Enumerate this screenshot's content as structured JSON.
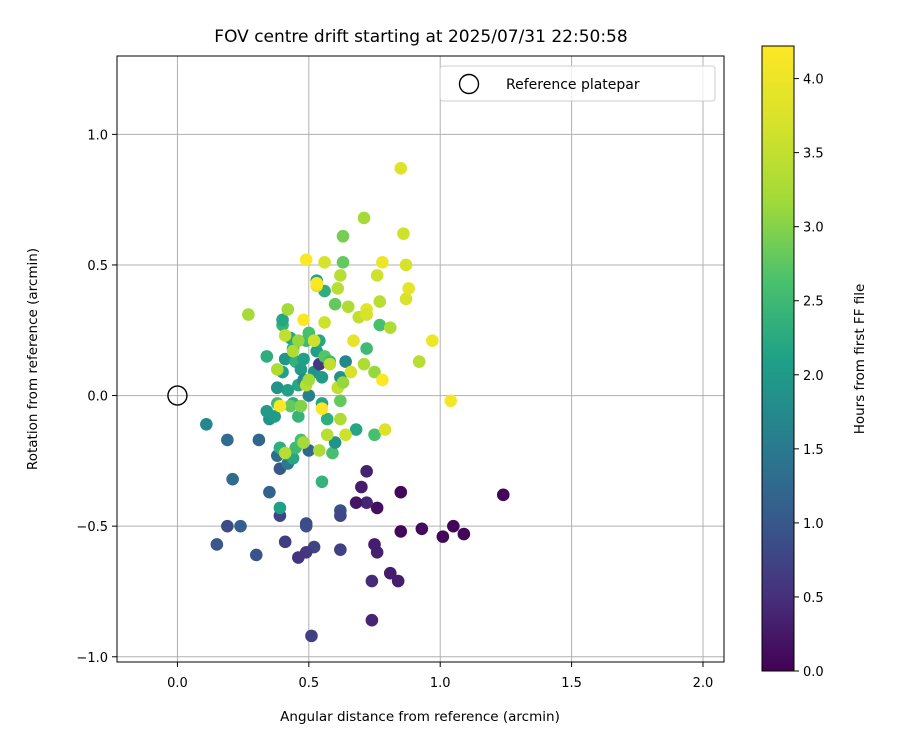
{
  "chart_data": {
    "type": "scatter",
    "title": "FOV centre drift starting at 2025/07/31 22:50:58",
    "xlabel": "Angular distance from reference (arcmin)",
    "ylabel": "Rotation from reference (arcmin)",
    "xlim": [
      -0.23,
      2.08
    ],
    "ylim": [
      -1.02,
      1.3
    ],
    "xticks": [
      0.0,
      0.5,
      1.0,
      1.5,
      2.0
    ],
    "xtick_labels": [
      "0.0",
      "0.5",
      "1.0",
      "1.5",
      "2.0"
    ],
    "yticks": [
      -1.0,
      -0.5,
      0.0,
      0.5,
      1.0
    ],
    "ytick_labels": [
      "−1.0",
      "−0.5",
      "0.0",
      "0.5",
      "1.0"
    ],
    "grid": true,
    "legend": {
      "placement": "top-right",
      "entries": [
        "Reference platepar"
      ]
    },
    "reference_point": {
      "label": "Reference platepar",
      "x": 0.0,
      "y": 0.0
    },
    "colorbar": {
      "label": "Hours from first FF file",
      "colormap": "viridis",
      "range": [
        0.0,
        4.22
      ],
      "ticks": [
        0.0,
        0.5,
        1.0,
        1.5,
        2.0,
        2.5,
        3.0,
        3.5,
        4.0
      ],
      "tick_labels": [
        "0.0",
        "0.5",
        "1.0",
        "1.5",
        "2.0",
        "2.5",
        "3.0",
        "3.5",
        "4.0"
      ]
    },
    "series": [
      {
        "points": [
          {
            "x": 0.85,
            "y": -0.37,
            "c": 0.05
          },
          {
            "x": 0.85,
            "y": -0.52,
            "c": 0.08
          },
          {
            "x": 0.84,
            "y": -0.71,
            "c": 0.3
          },
          {
            "x": 0.81,
            "y": -0.68,
            "c": 0.3
          },
          {
            "x": 0.93,
            "y": -0.51,
            "c": 0.1
          },
          {
            "x": 1.01,
            "y": -0.54,
            "c": 0.05
          },
          {
            "x": 1.05,
            "y": -0.5,
            "c": 0.05
          },
          {
            "x": 1.09,
            "y": -0.53,
            "c": 0.05
          },
          {
            "x": 1.24,
            "y": -0.38,
            "c": 0.05
          },
          {
            "x": 0.76,
            "y": -0.43,
            "c": 0.15
          },
          {
            "x": 0.76,
            "y": -0.6,
            "c": 0.35
          },
          {
            "x": 0.75,
            "y": -0.57,
            "c": 0.3
          },
          {
            "x": 0.74,
            "y": -0.71,
            "c": 0.45
          },
          {
            "x": 0.74,
            "y": -0.86,
            "c": 0.4
          },
          {
            "x": 0.72,
            "y": -0.41,
            "c": 0.4
          },
          {
            "x": 0.72,
            "y": -0.29,
            "c": 0.35
          },
          {
            "x": 0.7,
            "y": -0.35,
            "c": 0.3
          },
          {
            "x": 0.68,
            "y": -0.41,
            "c": 0.2
          },
          {
            "x": 0.62,
            "y": -0.44,
            "c": 0.9
          },
          {
            "x": 0.62,
            "y": -0.46,
            "c": 0.8
          },
          {
            "x": 0.62,
            "y": -0.59,
            "c": 0.7
          },
          {
            "x": 0.52,
            "y": -0.58,
            "c": 0.75
          },
          {
            "x": 0.51,
            "y": -0.92,
            "c": 0.7
          },
          {
            "x": 0.49,
            "y": -0.6,
            "c": 0.6
          },
          {
            "x": 0.49,
            "y": -0.5,
            "c": 0.95
          },
          {
            "x": 0.49,
            "y": -0.49,
            "c": 0.85
          },
          {
            "x": 0.46,
            "y": -0.62,
            "c": 0.55
          },
          {
            "x": 0.41,
            "y": -0.56,
            "c": 0.65
          },
          {
            "x": 0.39,
            "y": -0.46,
            "c": 0.75
          },
          {
            "x": 0.3,
            "y": -0.61,
            "c": 0.95
          },
          {
            "x": 0.24,
            "y": -0.5,
            "c": 1.1
          },
          {
            "x": 0.19,
            "y": -0.5,
            "c": 0.85
          },
          {
            "x": 0.15,
            "y": -0.57,
            "c": 1.0
          },
          {
            "x": 0.21,
            "y": -0.32,
            "c": 1.3
          },
          {
            "x": 0.19,
            "y": -0.17,
            "c": 1.3
          },
          {
            "x": 0.11,
            "y": -0.11,
            "c": 1.7
          },
          {
            "x": 0.31,
            "y": -0.17,
            "c": 1.2
          },
          {
            "x": 0.35,
            "y": -0.37,
            "c": 1.15
          },
          {
            "x": 0.38,
            "y": -0.23,
            "c": 1.3
          },
          {
            "x": 0.39,
            "y": -0.28,
            "c": 1.0
          },
          {
            "x": 0.39,
            "y": -0.43,
            "c": 2.1
          },
          {
            "x": 0.42,
            "y": -0.26,
            "c": 1.5
          },
          {
            "x": 0.44,
            "y": -0.24,
            "c": 2.2
          },
          {
            "x": 0.5,
            "y": -0.21,
            "c": 1.2
          },
          {
            "x": 0.55,
            "y": -0.33,
            "c": 2.4
          },
          {
            "x": 0.35,
            "y": -0.09,
            "c": 1.9
          },
          {
            "x": 0.37,
            "y": -0.08,
            "c": 2.0
          },
          {
            "x": 0.34,
            "y": -0.06,
            "c": 2.0
          },
          {
            "x": 0.34,
            "y": 0.15,
            "c": 2.3
          },
          {
            "x": 0.38,
            "y": 0.03,
            "c": 1.9
          },
          {
            "x": 0.4,
            "y": 0.09,
            "c": 2.1
          },
          {
            "x": 0.41,
            "y": 0.14,
            "c": 1.95
          },
          {
            "x": 0.42,
            "y": 0.02,
            "c": 2.1
          },
          {
            "x": 0.43,
            "y": 0.22,
            "c": 2.2
          },
          {
            "x": 0.44,
            "y": 0.18,
            "c": 2.3
          },
          {
            "x": 0.45,
            "y": 0.13,
            "c": 2.35
          },
          {
            "x": 0.46,
            "y": 0.04,
            "c": 2.2
          },
          {
            "x": 0.46,
            "y": -0.08,
            "c": 2.4
          },
          {
            "x": 0.47,
            "y": 0.1,
            "c": 2.0
          },
          {
            "x": 0.48,
            "y": 0.14,
            "c": 2.1
          },
          {
            "x": 0.48,
            "y": 0.06,
            "c": 1.8
          },
          {
            "x": 0.49,
            "y": 0.21,
            "c": 2.5
          },
          {
            "x": 0.5,
            "y": 0.24,
            "c": 2.6
          },
          {
            "x": 0.5,
            "y": 0.0,
            "c": 1.6
          },
          {
            "x": 0.52,
            "y": 0.09,
            "c": 1.9
          },
          {
            "x": 0.53,
            "y": 0.17,
            "c": 2.1
          },
          {
            "x": 0.53,
            "y": 0.44,
            "c": 2.15
          },
          {
            "x": 0.54,
            "y": 0.21,
            "c": 2.2
          },
          {
            "x": 0.55,
            "y": 0.07,
            "c": 2.0
          },
          {
            "x": 0.55,
            "y": -0.03,
            "c": 2.2
          },
          {
            "x": 0.54,
            "y": 0.12,
            "c": 0.6
          },
          {
            "x": 0.56,
            "y": 0.4,
            "c": 2.3
          },
          {
            "x": 0.56,
            "y": 0.15,
            "c": 2.7
          },
          {
            "x": 0.57,
            "y": -0.09,
            "c": 2.3
          },
          {
            "x": 0.58,
            "y": 0.13,
            "c": 2.5
          },
          {
            "x": 0.59,
            "y": -0.22,
            "c": 2.6
          },
          {
            "x": 0.6,
            "y": -0.18,
            "c": 1.9
          },
          {
            "x": 0.6,
            "y": 0.35,
            "c": 2.8
          },
          {
            "x": 0.62,
            "y": -0.02,
            "c": 2.8
          },
          {
            "x": 0.62,
            "y": 0.07,
            "c": 1.9
          },
          {
            "x": 0.63,
            "y": 0.61,
            "c": 2.9
          },
          {
            "x": 0.63,
            "y": 0.51,
            "c": 2.8
          },
          {
            "x": 0.64,
            "y": 0.13,
            "c": 1.7
          },
          {
            "x": 0.68,
            "y": -0.13,
            "c": 2.2
          },
          {
            "x": 0.72,
            "y": 0.18,
            "c": 2.5
          },
          {
            "x": 0.75,
            "y": -0.15,
            "c": 2.6
          },
          {
            "x": 0.77,
            "y": 0.27,
            "c": 2.6
          },
          {
            "x": 0.4,
            "y": 0.27,
            "c": 2.4
          },
          {
            "x": 0.4,
            "y": 0.29,
            "c": 2.2
          },
          {
            "x": 0.39,
            "y": -0.2,
            "c": 2.3
          },
          {
            "x": 0.45,
            "y": -0.2,
            "c": 2.5
          },
          {
            "x": 0.47,
            "y": -0.17,
            "c": 2.6
          },
          {
            "x": 0.44,
            "y": -0.03,
            "c": 2.3
          },
          {
            "x": 0.43,
            "y": -0.04,
            "c": 2.8
          },
          {
            "x": 0.38,
            "y": -0.03,
            "c": 2.5
          },
          {
            "x": 0.27,
            "y": 0.31,
            "c": 3.2
          },
          {
            "x": 0.38,
            "y": 0.1,
            "c": 3.3
          },
          {
            "x": 0.41,
            "y": 0.23,
            "c": 3.5
          },
          {
            "x": 0.41,
            "y": -0.22,
            "c": 3.4
          },
          {
            "x": 0.42,
            "y": 0.33,
            "c": 3.2
          },
          {
            "x": 0.44,
            "y": 0.17,
            "c": 3.3
          },
          {
            "x": 0.46,
            "y": 0.21,
            "c": 3.1
          },
          {
            "x": 0.47,
            "y": -0.04,
            "c": 3.0
          },
          {
            "x": 0.48,
            "y": -0.18,
            "c": 3.2
          },
          {
            "x": 0.49,
            "y": 0.04,
            "c": 3.4
          },
          {
            "x": 0.5,
            "y": 0.06,
            "c": 3.2
          },
          {
            "x": 0.52,
            "y": 0.21,
            "c": 3.6
          },
          {
            "x": 0.53,
            "y": 0.42,
            "c": 3.9
          },
          {
            "x": 0.54,
            "y": -0.21,
            "c": 3.3
          },
          {
            "x": 0.56,
            "y": 0.28,
            "c": 3.6
          },
          {
            "x": 0.56,
            "y": 0.51,
            "c": 3.7
          },
          {
            "x": 0.57,
            "y": -0.15,
            "c": 3.4
          },
          {
            "x": 0.58,
            "y": 0.12,
            "c": 3.5
          },
          {
            "x": 0.61,
            "y": 0.41,
            "c": 3.4
          },
          {
            "x": 0.61,
            "y": 0.03,
            "c": 3.5
          },
          {
            "x": 0.62,
            "y": -0.09,
            "c": 3.3
          },
          {
            "x": 0.62,
            "y": 0.46,
            "c": 3.4
          },
          {
            "x": 0.63,
            "y": 0.05,
            "c": 3.1
          },
          {
            "x": 0.64,
            "y": -0.15,
            "c": 3.6
          },
          {
            "x": 0.65,
            "y": 0.34,
            "c": 3.3
          },
          {
            "x": 0.66,
            "y": 0.09,
            "c": 3.7
          },
          {
            "x": 0.67,
            "y": 0.21,
            "c": 3.9
          },
          {
            "x": 0.69,
            "y": 0.3,
            "c": 3.5
          },
          {
            "x": 0.71,
            "y": 0.68,
            "c": 3.2
          },
          {
            "x": 0.71,
            "y": 0.12,
            "c": 3.3
          },
          {
            "x": 0.72,
            "y": 0.33,
            "c": 3.9
          },
          {
            "x": 0.72,
            "y": 0.31,
            "c": 3.7
          },
          {
            "x": 0.75,
            "y": 0.09,
            "c": 3.1
          },
          {
            "x": 0.76,
            "y": 0.46,
            "c": 3.6
          },
          {
            "x": 0.77,
            "y": 0.36,
            "c": 3.4
          },
          {
            "x": 0.78,
            "y": 0.51,
            "c": 4.0
          },
          {
            "x": 0.79,
            "y": -0.13,
            "c": 3.8
          },
          {
            "x": 0.81,
            "y": 0.26,
            "c": 3.3
          },
          {
            "x": 0.85,
            "y": 0.87,
            "c": 3.8
          },
          {
            "x": 0.86,
            "y": 0.62,
            "c": 3.6
          },
          {
            "x": 0.87,
            "y": 0.5,
            "c": 3.7
          },
          {
            "x": 0.87,
            "y": 0.37,
            "c": 3.7
          },
          {
            "x": 0.88,
            "y": 0.41,
            "c": 3.9
          },
          {
            "x": 0.92,
            "y": 0.13,
            "c": 3.4
          },
          {
            "x": 0.97,
            "y": 0.21,
            "c": 4.0
          },
          {
            "x": 1.04,
            "y": -0.02,
            "c": 4.1
          },
          {
            "x": 0.49,
            "y": 0.52,
            "c": 4.2
          },
          {
            "x": 0.48,
            "y": 0.29,
            "c": 4.2
          },
          {
            "x": 0.39,
            "y": -0.04,
            "c": 4.2
          },
          {
            "x": 0.55,
            "y": -0.05,
            "c": 4.2
          },
          {
            "x": 0.78,
            "y": 0.06,
            "c": 4.2
          },
          {
            "x": 0.53,
            "y": 0.43,
            "c": 4.2
          }
        ]
      }
    ]
  }
}
